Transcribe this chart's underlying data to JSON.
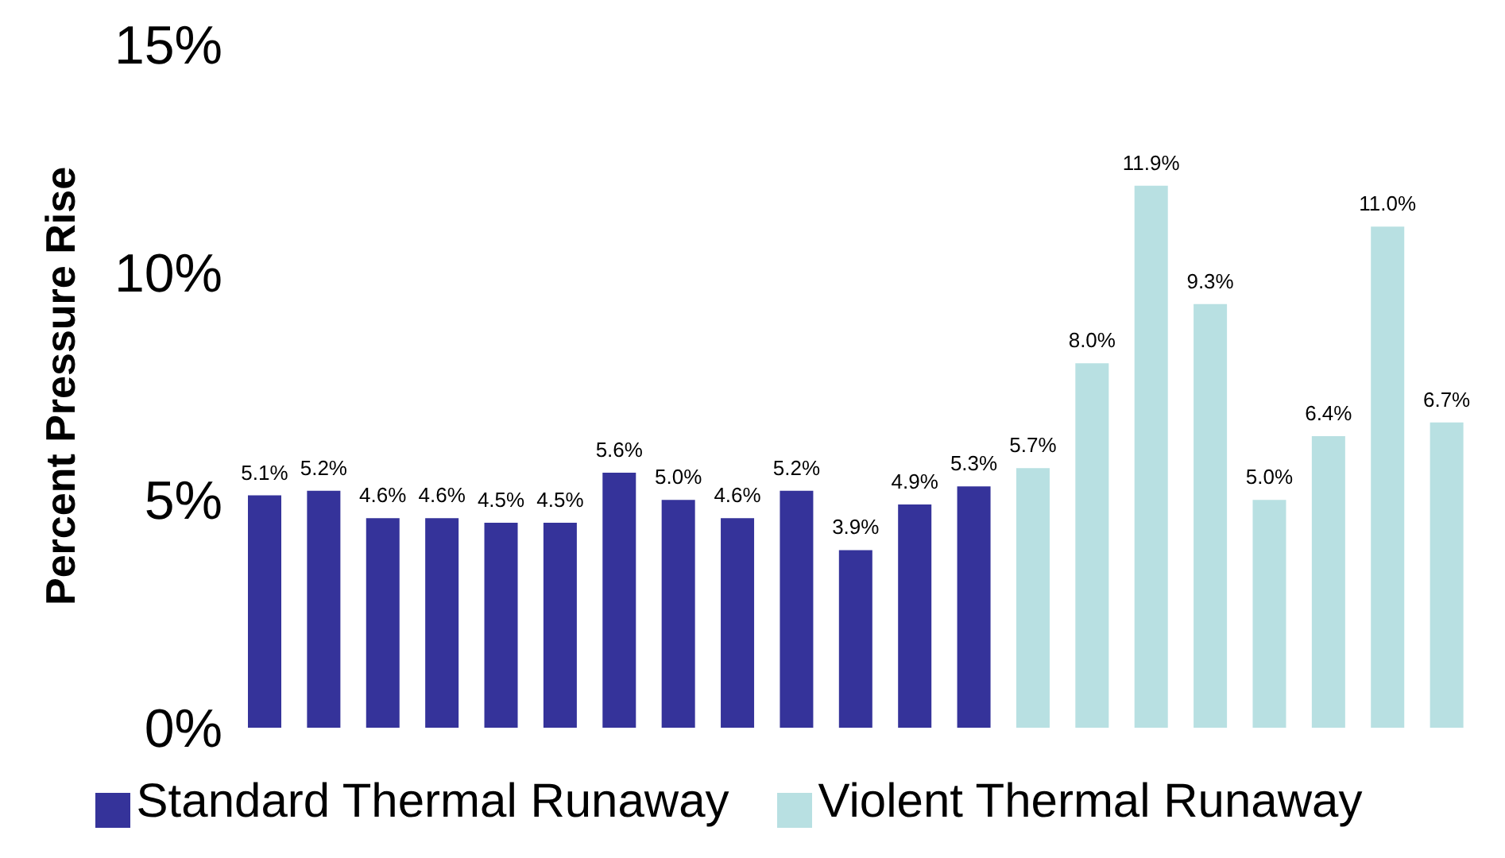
{
  "chart_data": {
    "type": "bar",
    "ylabel": "Percent Pressure Rise",
    "categories": [
      null,
      null,
      null,
      null,
      null,
      null,
      null,
      null,
      null,
      null,
      null,
      null,
      null,
      null,
      null,
      null,
      null,
      null,
      null,
      null,
      null
    ],
    "series": [
      {
        "name": "Standard Thermal Runaway",
        "color": "#35339a",
        "values": [
          5.1,
          5.2,
          4.6,
          4.6,
          4.5,
          4.5,
          5.6,
          5.0,
          4.6,
          5.2,
          3.9,
          4.9,
          5.3,
          null,
          null,
          null,
          null,
          null,
          null,
          null,
          null
        ],
        "value_labels": [
          "5.1%",
          "5.2%",
          "4.6%",
          "4.6%",
          "4.5%",
          "4.5%",
          "5.6%",
          "5.0%",
          "4.6%",
          "5.2%",
          "3.9%",
          "4.9%",
          "5.3%",
          null,
          null,
          null,
          null,
          null,
          null,
          null,
          null
        ]
      },
      {
        "name": "Violent Thermal Runaway",
        "color": "#b8e0e2",
        "values": [
          null,
          null,
          null,
          null,
          null,
          null,
          null,
          null,
          null,
          null,
          null,
          null,
          null,
          5.7,
          8.0,
          11.9,
          9.3,
          5.0,
          6.4,
          11.0,
          6.7
        ],
        "value_labels": [
          null,
          null,
          null,
          null,
          null,
          null,
          null,
          null,
          null,
          null,
          null,
          null,
          null,
          "5.7%",
          "8.0%",
          "11.9%",
          "9.3%",
          "5.0%",
          "6.4%",
          "11.0%",
          "6.7%"
        ]
      }
    ],
    "ylim": [
      0,
      15
    ],
    "yticks": [
      {
        "value": 0,
        "label": "0%"
      },
      {
        "value": 5,
        "label": "5%"
      },
      {
        "value": 10,
        "label": "10%"
      },
      {
        "value": 15,
        "label": "15%"
      }
    ],
    "grid": false,
    "legend": "bottom",
    "stacked": true
  }
}
